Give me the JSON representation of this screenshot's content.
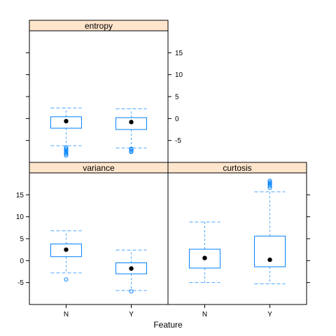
{
  "chart_data": {
    "type": "box",
    "xlabel": "Feature",
    "ylabel": "",
    "categories": [
      "N",
      "Y"
    ],
    "y_ticks": [
      -5,
      0,
      5,
      10,
      15
    ],
    "ylim": [
      -10,
      20
    ],
    "layout": "lattice 2x2 (bottom-left, bottom-right, top-left)",
    "panels": [
      {
        "name": "entropy",
        "y_axis_side": "right",
        "boxes": [
          {
            "category": "N",
            "whisker_low": -6.2,
            "q1": -2.2,
            "median": -0.6,
            "q3": 0.4,
            "whisker_high": 2.4,
            "outliers": [
              -6.6,
              -6.9,
              -7.2,
              -7.5,
              -7.8,
              -8.1,
              -8.4
            ]
          },
          {
            "category": "Y",
            "whisker_low": -6.7,
            "q1": -2.5,
            "median": -0.8,
            "q3": 0.2,
            "whisker_high": 2.2,
            "outliers": [
              -6.9,
              -7.1,
              -7.4,
              -7.6
            ]
          }
        ]
      },
      {
        "name": "variance",
        "y_axis_side": "left",
        "boxes": [
          {
            "category": "N",
            "whisker_low": -2.8,
            "q1": 0.9,
            "median": 2.5,
            "q3": 3.8,
            "whisker_high": 6.8,
            "outliers": [
              -4.3
            ]
          },
          {
            "category": "Y",
            "whisker_low": -6.8,
            "q1": -3.0,
            "median": -1.8,
            "q3": -0.5,
            "whisker_high": 2.4,
            "outliers": [
              -7.0
            ]
          }
        ]
      },
      {
        "name": "curtosis",
        "y_axis_side": "none",
        "boxes": [
          {
            "category": "N",
            "whisker_low": -5.0,
            "q1": -1.7,
            "median": 0.6,
            "q3": 2.6,
            "whisker_high": 8.8,
            "outliers": []
          },
          {
            "category": "Y",
            "whisker_low": -5.3,
            "q1": -1.4,
            "median": 0.2,
            "q3": 5.6,
            "whisker_high": 15.7,
            "outliers": [
              16.6,
              17.0,
              17.3,
              17.6,
              17.9,
              18.2
            ]
          }
        ]
      }
    ]
  },
  "colors": {
    "box": "#0080ff",
    "whisker": "#4da6ff",
    "strip_bg": "#ffe5cc",
    "median_dot": "#000000",
    "frame": "#000000"
  }
}
